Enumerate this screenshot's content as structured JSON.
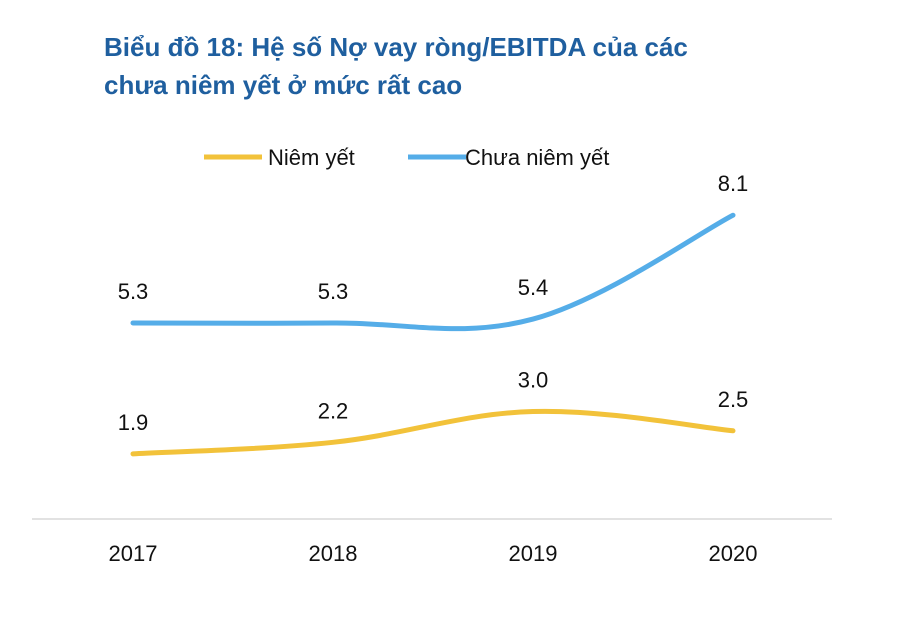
{
  "title": {
    "line1": "Biểu đồ 18: Hệ số Nợ vay ròng/EBITDA của các",
    "line2": "chưa niêm yết ở mức rất cao"
  },
  "colors": {
    "niem_yet": "#f2c23a",
    "chua_niem_yet": "#55ade8",
    "axis": "#d9d9d9",
    "title": "#1f5f9f"
  },
  "chart_data": {
    "type": "line",
    "title": "Biểu đồ 18: Hệ số Nợ vay ròng/EBITDA của các chưa niêm yết ở mức rất cao",
    "categories": [
      "2017",
      "2018",
      "2019",
      "2020"
    ],
    "series": [
      {
        "name": "Niêm yết",
        "values": [
          1.9,
          2.2,
          3.0,
          2.5
        ],
        "labels": [
          "1.9",
          "2.2",
          "3.0",
          "2.5"
        ]
      },
      {
        "name": "Chưa niêm yết",
        "values": [
          5.3,
          5.3,
          5.4,
          8.1
        ],
        "labels": [
          "5.3",
          "5.3",
          "5.4",
          "8.1"
        ]
      }
    ],
    "xlabel": "",
    "ylabel": "",
    "legend": "top",
    "grid": false,
    "smooth": true
  }
}
